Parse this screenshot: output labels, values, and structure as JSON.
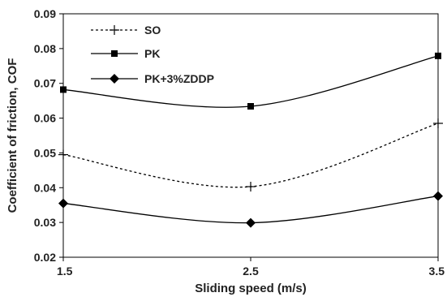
{
  "chart_data": {
    "type": "line",
    "xlabel": "Sliding speed (m/s)",
    "ylabel": "Coefficient of friction, COF",
    "xlim": [
      1.5,
      3.5
    ],
    "ylim": [
      0.02,
      0.09
    ],
    "x_ticks": [
      "1.5",
      "2.5",
      "3.5"
    ],
    "y_ticks": [
      "0.02",
      "0.03",
      "0.04",
      "0.05",
      "0.06",
      "0.07",
      "0.08",
      "0.09"
    ],
    "x": [
      1.5,
      2.5,
      3.5
    ],
    "grid": false,
    "legend_position": "top-left",
    "smooth": true,
    "series": [
      {
        "name": "SO",
        "values": [
          0.0495,
          0.0403,
          0.0585
        ],
        "marker": "plus",
        "line_style": "dotted",
        "color": "#000000"
      },
      {
        "name": "PK",
        "values": [
          0.0682,
          0.0634,
          0.0779
        ],
        "marker": "square",
        "line_style": "solid",
        "color": "#000000"
      },
      {
        "name": "PK+3%ZDDP",
        "values": [
          0.0355,
          0.0299,
          0.0376
        ],
        "marker": "diamond",
        "line_style": "solid",
        "color": "#000000"
      }
    ]
  }
}
